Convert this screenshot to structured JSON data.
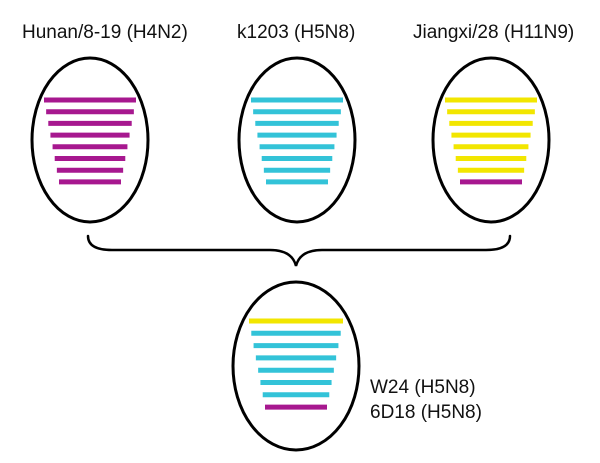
{
  "parents": [
    {
      "label": "Hunan/8-19 (H4N2)",
      "segments": [
        "#a7188f",
        "#a7188f",
        "#a7188f",
        "#a7188f",
        "#a7188f",
        "#a7188f",
        "#a7188f",
        "#a7188f"
      ]
    },
    {
      "label": "k1203 (H5N8)",
      "segments": [
        "#33c3d8",
        "#33c3d8",
        "#33c3d8",
        "#33c3d8",
        "#33c3d8",
        "#33c3d8",
        "#33c3d8",
        "#33c3d8"
      ]
    },
    {
      "label": "Jiangxi/28 (H11N9)",
      "segments": [
        "#f2e600",
        "#f2e600",
        "#f2e600",
        "#f2e600",
        "#f2e600",
        "#f2e600",
        "#f2e600",
        "#a7188f"
      ]
    }
  ],
  "reassortant": {
    "segments": [
      "#f2e600",
      "#33c3d8",
      "#33c3d8",
      "#33c3d8",
      "#33c3d8",
      "#33c3d8",
      "#33c3d8",
      "#a7188f"
    ],
    "labels": [
      "W24 (H5N8)",
      "6D18 (H5N8)"
    ]
  }
}
